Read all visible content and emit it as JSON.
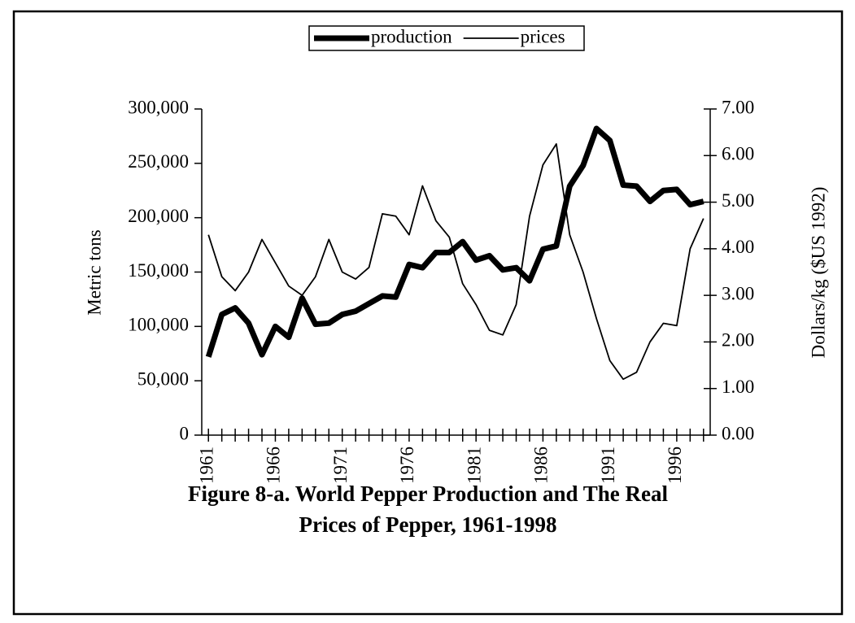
{
  "chart_data": {
    "type": "line",
    "title": [
      "Figure 8-a. World Pepper Production and The Real",
      "Prices of Pepper, 1961-1998"
    ],
    "ylabel": "Metric tons",
    "y2label": "Dollars/kg ($US 1992)",
    "x": [
      1961,
      1962,
      1963,
      1964,
      1965,
      1966,
      1967,
      1968,
      1969,
      1970,
      1971,
      1972,
      1973,
      1974,
      1975,
      1976,
      1977,
      1978,
      1979,
      1980,
      1981,
      1982,
      1983,
      1984,
      1985,
      1986,
      1987,
      1988,
      1989,
      1990,
      1991,
      1992,
      1993,
      1994,
      1995,
      1996,
      1997,
      1998
    ],
    "xlim": [
      1960.5,
      1998.5
    ],
    "xticks": [
      1961,
      1966,
      1971,
      1976,
      1981,
      1986,
      1991,
      1996
    ],
    "ylim": [
      0,
      300000
    ],
    "yticks": [
      0,
      {
        "value": 50000,
        "label": "50,000"
      },
      {
        "value": 100000,
        "label": "100,000"
      },
      {
        "value": 150000,
        "label": "150,000"
      },
      {
        "value": 200000,
        "label": "200,000"
      },
      {
        "value": 250000,
        "label": "250,000"
      },
      {
        "value": 300000,
        "label": "300,000"
      }
    ],
    "y2lim": [
      0,
      7
    ],
    "y2ticks": [
      {
        "value": 0,
        "label": "0.00"
      },
      {
        "value": 1,
        "label": "1.00"
      },
      {
        "value": 2,
        "label": "2.00"
      },
      {
        "value": 3,
        "label": "3.00"
      },
      {
        "value": 4,
        "label": "4.00"
      },
      {
        "value": 5,
        "label": "5.00"
      },
      {
        "value": 6,
        "label": "6.00"
      },
      {
        "value": 7,
        "label": "7.00"
      }
    ],
    "legend": "top",
    "series": [
      {
        "name": "production",
        "color": "#000000",
        "width": 7,
        "values": [
          72000,
          111000,
          117000,
          103000,
          74000,
          100000,
          90000,
          126000,
          102000,
          103000,
          111000,
          114000,
          121000,
          128000,
          127000,
          157000,
          154000,
          168000,
          168000,
          178000,
          161000,
          165000,
          152000,
          154000,
          142000,
          171000,
          174000,
          229000,
          248000,
          282000,
          271000,
          230000,
          229000,
          215000,
          225000,
          226000,
          212000,
          215000
        ]
      },
      {
        "name": "prices",
        "color": "#000000",
        "width": 1.8,
        "axis": "y2",
        "values": [
          4.3,
          3.4,
          3.1,
          3.5,
          4.2,
          3.7,
          3.2,
          3.0,
          3.4,
          4.2,
          3.5,
          3.35,
          3.6,
          4.75,
          4.7,
          4.3,
          5.35,
          4.6,
          4.25,
          3.25,
          2.8,
          2.25,
          2.15,
          2.8,
          4.7,
          5.8,
          6.25,
          4.3,
          3.5,
          2.5,
          1.6,
          1.2,
          1.35,
          2.0,
          2.4,
          2.35,
          4.0,
          4.65
        ]
      }
    ]
  }
}
